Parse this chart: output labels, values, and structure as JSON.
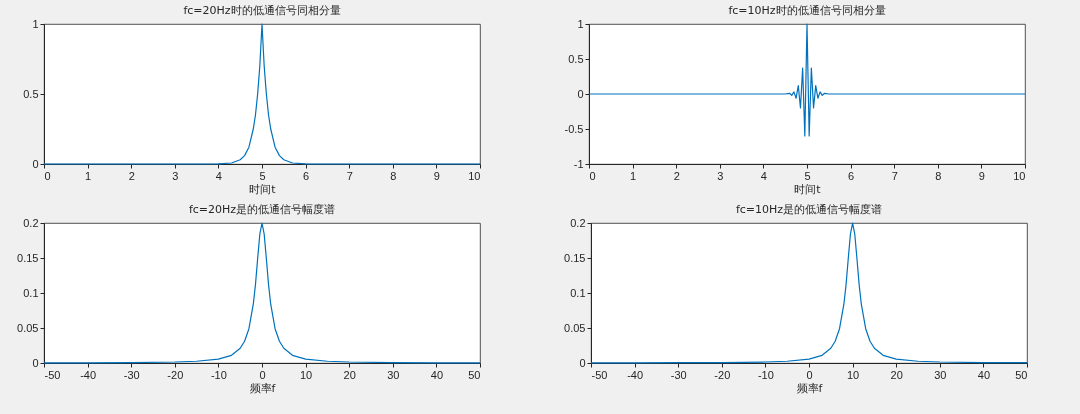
{
  "chart_data": [
    {
      "type": "line",
      "title": "fc=20Hz时的低通信号同相分量",
      "xlabel": "时间t",
      "color": "#0072bd",
      "xlim": [
        0,
        10
      ],
      "ylim": [
        0,
        1
      ],
      "xticks": [
        0,
        1,
        2,
        3,
        4,
        5,
        6,
        7,
        8,
        9,
        10
      ],
      "yticks": [
        0,
        0.5,
        1
      ],
      "x": [
        0,
        4,
        4.3,
        4.5,
        4.6,
        4.7,
        4.8,
        4.85,
        4.9,
        4.95,
        5,
        5.05,
        5.1,
        5.15,
        5.2,
        5.3,
        5.4,
        5.5,
        5.7,
        6,
        10
      ],
      "values": [
        0,
        0.001,
        0.007,
        0.03,
        0.06,
        0.12,
        0.25,
        0.35,
        0.5,
        0.7,
        1,
        0.7,
        0.5,
        0.35,
        0.25,
        0.12,
        0.06,
        0.03,
        0.007,
        0.001,
        0
      ]
    },
    {
      "type": "line",
      "title": "fc=10Hz时的低通信号同相分量",
      "xlabel": "时间t",
      "color": "#0072bd",
      "xlim": [
        0,
        10
      ],
      "ylim": [
        -1,
        1
      ],
      "xticks": [
        0,
        1,
        2,
        3,
        4,
        5,
        6,
        7,
        8,
        9,
        10
      ],
      "yticks": [
        -1,
        -0.5,
        0,
        0.5,
        1
      ],
      "x": [
        0,
        4.5,
        4.6,
        4.65,
        4.7,
        4.75,
        4.8,
        4.85,
        4.9,
        4.95,
        5,
        5.05,
        5.1,
        5.15,
        5.2,
        5.25,
        5.3,
        5.35,
        5.4,
        5.5,
        10
      ],
      "values": [
        0,
        0,
        0.01,
        -0.02,
        0.03,
        -0.06,
        0.12,
        -0.2,
        0.37,
        -0.6,
        1,
        -0.6,
        0.37,
        -0.2,
        0.12,
        -0.06,
        0.03,
        -0.02,
        0.01,
        0,
        0
      ]
    },
    {
      "type": "line",
      "title": "fc=20Hz是的低通信号幅度谱",
      "xlabel": "频率f",
      "color": "#0072bd",
      "xlim": [
        -50,
        50
      ],
      "ylim": [
        0,
        0.2
      ],
      "xticks": [
        -50,
        -40,
        -30,
        -20,
        -10,
        0,
        10,
        20,
        30,
        40,
        50
      ],
      "yticks": [
        0,
        0.05,
        0.1,
        0.15,
        0.2
      ],
      "x": [
        -50,
        -40,
        -30,
        -20,
        -15,
        -10,
        -7,
        -5,
        -4,
        -3,
        -2,
        -1.5,
        -1,
        -0.5,
        0,
        0.5,
        1,
        1.5,
        2,
        3,
        4,
        5,
        7,
        10,
        15,
        20,
        30,
        40,
        50
      ],
      "values": [
        0.0002,
        0.0003,
        0.0006,
        0.0014,
        0.0025,
        0.0056,
        0.011,
        0.021,
        0.031,
        0.049,
        0.084,
        0.112,
        0.149,
        0.184,
        0.2,
        0.184,
        0.149,
        0.112,
        0.084,
        0.049,
        0.031,
        0.021,
        0.011,
        0.0056,
        0.0025,
        0.0014,
        0.0006,
        0.0003,
        0.0002
      ]
    },
    {
      "type": "line",
      "title": "fc=10Hz是的低通信号幅度谱",
      "xlabel": "频率f",
      "color": "#0072bd",
      "xlim": [
        -50,
        50
      ],
      "ylim": [
        0,
        0.2
      ],
      "xticks": [
        -50,
        -40,
        -30,
        -20,
        -10,
        0,
        10,
        20,
        30,
        40,
        50
      ],
      "yticks": [
        0,
        0.05,
        0.1,
        0.15,
        0.2
      ],
      "x": [
        -50,
        -40,
        -30,
        -20,
        -10,
        -5,
        0,
        3,
        5,
        6,
        7,
        8,
        8.5,
        9,
        9.5,
        10,
        10.5,
        11,
        11.5,
        12,
        13,
        14,
        15,
        17,
        20,
        25,
        30,
        40,
        50
      ],
      "values": [
        0.0002,
        0.0002,
        0.0004,
        0.0006,
        0.0014,
        0.0025,
        0.0056,
        0.011,
        0.021,
        0.031,
        0.049,
        0.084,
        0.112,
        0.149,
        0.184,
        0.2,
        0.184,
        0.149,
        0.112,
        0.084,
        0.049,
        0.031,
        0.021,
        0.011,
        0.0056,
        0.0025,
        0.0014,
        0.0006,
        0.0004
      ]
    }
  ]
}
